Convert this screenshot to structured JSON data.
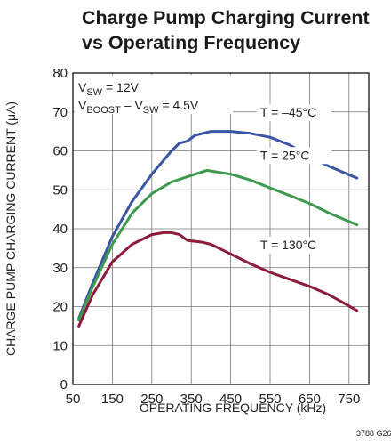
{
  "chart_data": {
    "type": "line",
    "title_lines": [
      "Charge Pump Charging Current",
      "vs Operating Frequency"
    ],
    "xlabel": "OPERATING FREQUENCY (kHz)",
    "ylabel": "CHARGE PUMP CHARGING CURRENT (μA)",
    "xlim": [
      50,
      800
    ],
    "ylim": [
      0,
      80
    ],
    "xticks": [
      50,
      150,
      250,
      350,
      450,
      550,
      650,
      750
    ],
    "yticks": [
      0,
      10,
      20,
      30,
      40,
      50,
      60,
      70,
      80
    ],
    "grid": true,
    "conditions": [
      {
        "main": "V",
        "sub": "SW",
        "rest": " = 12V"
      },
      {
        "main": "V",
        "sub": "BOOST",
        "rest": " – V",
        "sub2": "SW",
        "rest2": " = 4.5V"
      }
    ],
    "figure_code": "3788 G26",
    "series": [
      {
        "name": "T = –45°C",
        "color": "#3a55a4",
        "x": [
          65,
          100,
          150,
          200,
          250,
          300,
          320,
          340,
          360,
          400,
          450,
          500,
          550,
          600,
          650,
          700,
          770
        ],
        "y": [
          17,
          26,
          38,
          47,
          54,
          60,
          62,
          62.5,
          64,
          65,
          65,
          64.5,
          63.5,
          61.5,
          58.5,
          56,
          53
        ]
      },
      {
        "name": "T = 25°C",
        "color": "#3e9a4f",
        "x": [
          65,
          100,
          150,
          200,
          250,
          300,
          330,
          360,
          390,
          420,
          450,
          500,
          550,
          600,
          650,
          700,
          770
        ],
        "y": [
          16.5,
          25,
          36,
          44,
          49,
          52,
          53,
          54,
          55,
          54.5,
          54,
          52.5,
          50.5,
          48.5,
          46.5,
          44,
          41
        ]
      },
      {
        "name": "T = 130°C",
        "color": "#8c1c3a",
        "x": [
          65,
          100,
          150,
          200,
          250,
          280,
          300,
          320,
          340,
          380,
          400,
          450,
          500,
          550,
          600,
          650,
          700,
          770
        ],
        "y": [
          15,
          23,
          31.5,
          36,
          38.5,
          39,
          39,
          38.5,
          37,
          36.5,
          36,
          33.5,
          31,
          28.8,
          27,
          25.2,
          23,
          19
        ]
      }
    ],
    "series_label_pos": [
      {
        "x": 525,
        "y": 69
      },
      {
        "x": 525,
        "y": 58
      },
      {
        "x": 525,
        "y": 35
      }
    ]
  }
}
